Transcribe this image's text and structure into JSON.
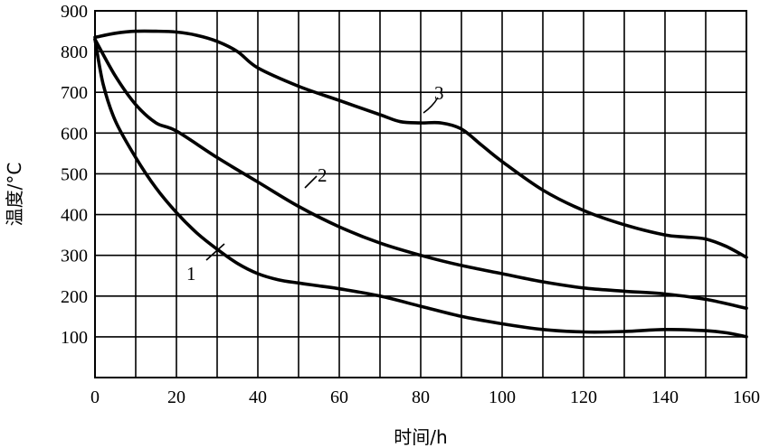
{
  "chart_data": {
    "type": "line",
    "title": "",
    "xlabel": "时间/h",
    "ylabel": "温度/°C",
    "xlim": [
      0,
      160
    ],
    "ylim": [
      0,
      900
    ],
    "grid": true,
    "x_ticks": [
      "0",
      "20",
      "40",
      "60",
      "80",
      "100",
      "120",
      "140",
      "160"
    ],
    "y_ticks": [
      "100",
      "200",
      "300",
      "400",
      "500",
      "600",
      "700",
      "800",
      "900"
    ],
    "series": [
      {
        "name": "1",
        "x": [
          0,
          2,
          5,
          10,
          15,
          20,
          25,
          30,
          35,
          40,
          45,
          50,
          55,
          60,
          70,
          80,
          90,
          100,
          110,
          120,
          130,
          140,
          150,
          155,
          160
        ],
        "y": [
          830,
          720,
          630,
          540,
          465,
          405,
          355,
          315,
          280,
          255,
          240,
          232,
          225,
          218,
          200,
          175,
          150,
          132,
          118,
          112,
          113,
          118,
          115,
          110,
          100
        ]
      },
      {
        "name": "2",
        "x": [
          0,
          5,
          10,
          15,
          20,
          30,
          40,
          50,
          60,
          70,
          80,
          90,
          100,
          110,
          120,
          130,
          140,
          150,
          160
        ],
        "y": [
          830,
          740,
          670,
          625,
          605,
          540,
          480,
          420,
          370,
          330,
          300,
          275,
          255,
          235,
          220,
          212,
          205,
          192,
          170
        ]
      },
      {
        "name": "3",
        "x": [
          0,
          5,
          10,
          15,
          20,
          25,
          30,
          35,
          40,
          50,
          60,
          70,
          75,
          80,
          85,
          90,
          95,
          100,
          110,
          120,
          130,
          140,
          145,
          150,
          155,
          160
        ],
        "y": [
          835,
          845,
          850,
          850,
          848,
          840,
          825,
          800,
          760,
          715,
          680,
          645,
          628,
          625,
          625,
          610,
          570,
          530,
          460,
          410,
          375,
          350,
          345,
          340,
          322,
          295
        ]
      }
    ],
    "annotations": [
      {
        "text": "1",
        "series": "1"
      },
      {
        "text": "2",
        "series": "2"
      },
      {
        "text": "3",
        "series": "3"
      }
    ]
  }
}
